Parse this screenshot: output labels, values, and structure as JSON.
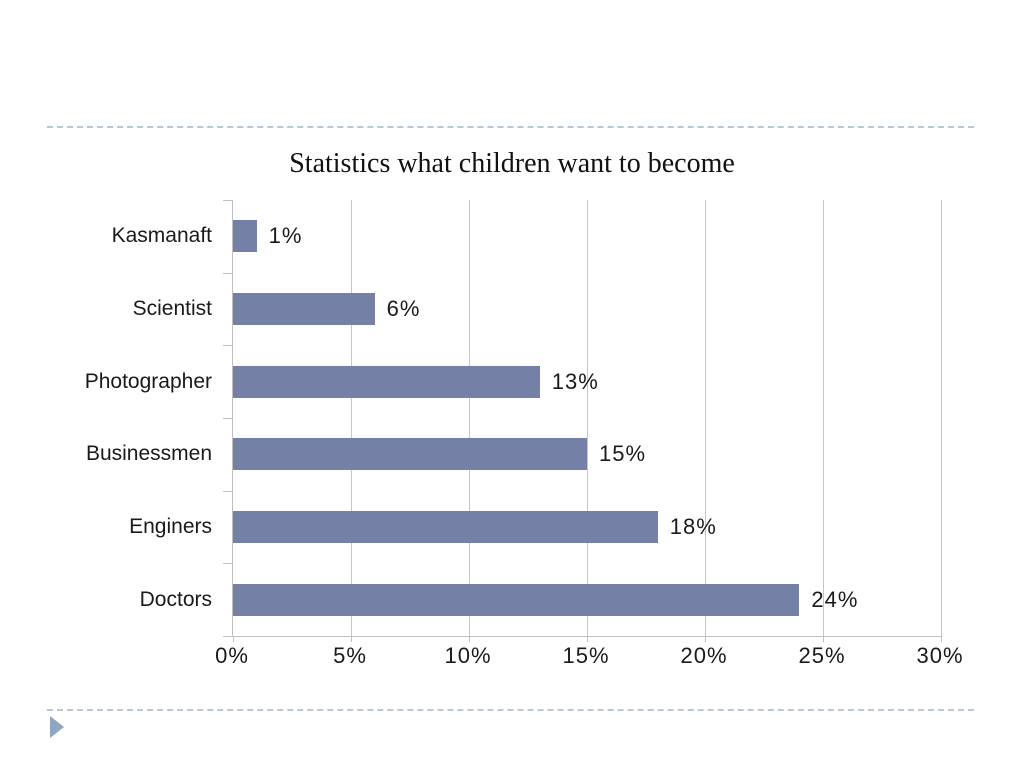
{
  "slide": {
    "footer_arrow_icon": "right-pointing-triangle",
    "divider_style": "dashed",
    "theme": {
      "divider_color": "#b9c6d4",
      "footer_arrow_color": "#8fa6c2",
      "background": "#ffffff"
    }
  },
  "chart_data": {
    "type": "bar",
    "orientation": "horizontal",
    "title": "Statistics what children want to become",
    "categories": [
      "Kasmanaft",
      "Scientist",
      "Photographer",
      "Businessmen",
      "Enginers",
      "Doctors"
    ],
    "values": [
      1,
      6,
      13,
      15,
      18,
      24
    ],
    "data_labels": [
      "1%",
      "6%",
      "13%",
      "15%",
      "18%",
      "24%"
    ],
    "x_ticks": [
      "0%",
      "5%",
      "10%",
      "15%",
      "20%",
      "25%",
      "30%"
    ],
    "x_tick_values": [
      0,
      5,
      10,
      15,
      20,
      25,
      30
    ],
    "xlim": [
      0,
      30
    ],
    "xlabel": "",
    "ylabel": "",
    "grid": true,
    "legend": false,
    "bar_color": "#7480a6",
    "grid_color": "#c6c6c6",
    "axis_color": "#bfbfbf",
    "label_color": "#1a1a1a"
  }
}
